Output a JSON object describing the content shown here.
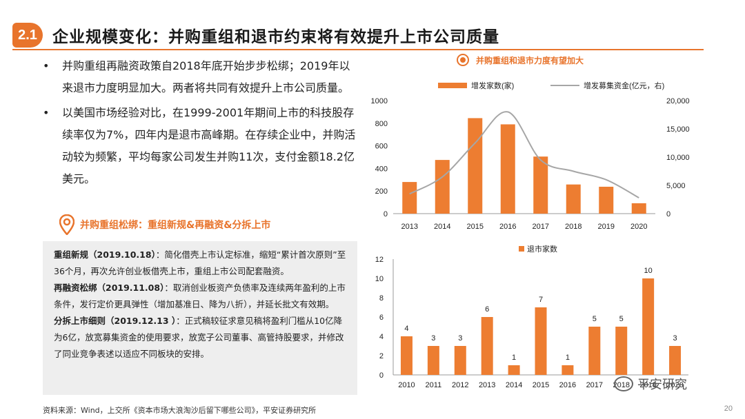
{
  "header": {
    "section_no": "2.1",
    "title": "企业规模变化：并购重组和退市约束将有效提升上市公司质量"
  },
  "bullets": [
    "并购重组再融资政策自2018年底开始步步松绑；2019年以来退市力度明显加大。两者将共同有效提升上市公司质量。",
    "以美国市场经验对比，在1999-2001年期间上市的科技股存续率仅为7%，四年内是退市高峰期。在存续企业中，并购活动较为频繁，平均每家公司发生并购11次，支付金额18.2亿美元。"
  ],
  "sub_heading": "并购重组松绑：重组新规&再融资&分拆上市",
  "policies": [
    {
      "head": "重组新规（2019.10.18）",
      "body": "：简化借壳上市认定标准，缩短“累计首次原则”至36个月，再次允许创业板借壳上市，重组上市公司配套融资。"
    },
    {
      "head": "再融资松绑（2019.11.08）",
      "body": "：取消创业板资产负债率及连续两年盈利的上市条件，发行定价更具弹性（增加基准日、降为八折），并延长批文有效期。"
    },
    {
      "head": "分拆上市细则（2019.12.13 ）",
      "body": "：正式稿较征求意见稿将盈利门槛从10亿降为6亿，放宽募集资金的使用要求，放宽子公司董事、高管持股要求，并修改了同业竞争表述以适应不同板块的安排。"
    }
  ],
  "footer": "资料来源：Wind，上交所《资本市场大浪淘沙后留下哪些公司》，平安证券研究所",
  "page_number": "20",
  "watermark": "平安研究",
  "chart1_title": "并购重组和退市力度有望加大",
  "colors": {
    "accent": "#e8742c",
    "bar": "#ed7d31",
    "line": "#a6a6a6"
  },
  "chart_data": [
    {
      "type": "bar",
      "categories": [
        "2013",
        "2014",
        "2015",
        "2016",
        "2017",
        "2018",
        "2019",
        "2020"
      ],
      "series": [
        {
          "name": "增发家数(家)",
          "type": "bar",
          "axis": "left",
          "values": [
            280,
            475,
            845,
            790,
            505,
            258,
            238,
            92
          ]
        },
        {
          "name": "增发募集资金(亿元，右)",
          "type": "line",
          "axis": "right",
          "values": [
            3500,
            6500,
            12500,
            18000,
            9500,
            7500,
            6000,
            2800
          ]
        }
      ],
      "ylim": [
        0,
        1000
      ],
      "yticks": [
        "0",
        "200",
        "400",
        "600",
        "800",
        "1000"
      ],
      "y2lim": [
        0,
        20000
      ],
      "y2ticks": [
        "0",
        "5,000",
        "10,000",
        "15,000",
        "20,000"
      ],
      "legend": "top"
    },
    {
      "type": "bar",
      "categories": [
        "2010",
        "2011",
        "2012",
        "2013",
        "2014",
        "2015",
        "2016",
        "2017",
        "2018",
        "2019",
        "2020"
      ],
      "series": [
        {
          "name": "退市家数",
          "values": [
            4,
            3,
            3,
            6,
            1,
            7,
            1,
            5,
            5,
            10,
            3
          ]
        }
      ],
      "ylim": [
        0,
        12
      ],
      "yticks": [
        "0",
        "2",
        "4",
        "6",
        "8",
        "10",
        "12"
      ],
      "legend": "top"
    }
  ]
}
